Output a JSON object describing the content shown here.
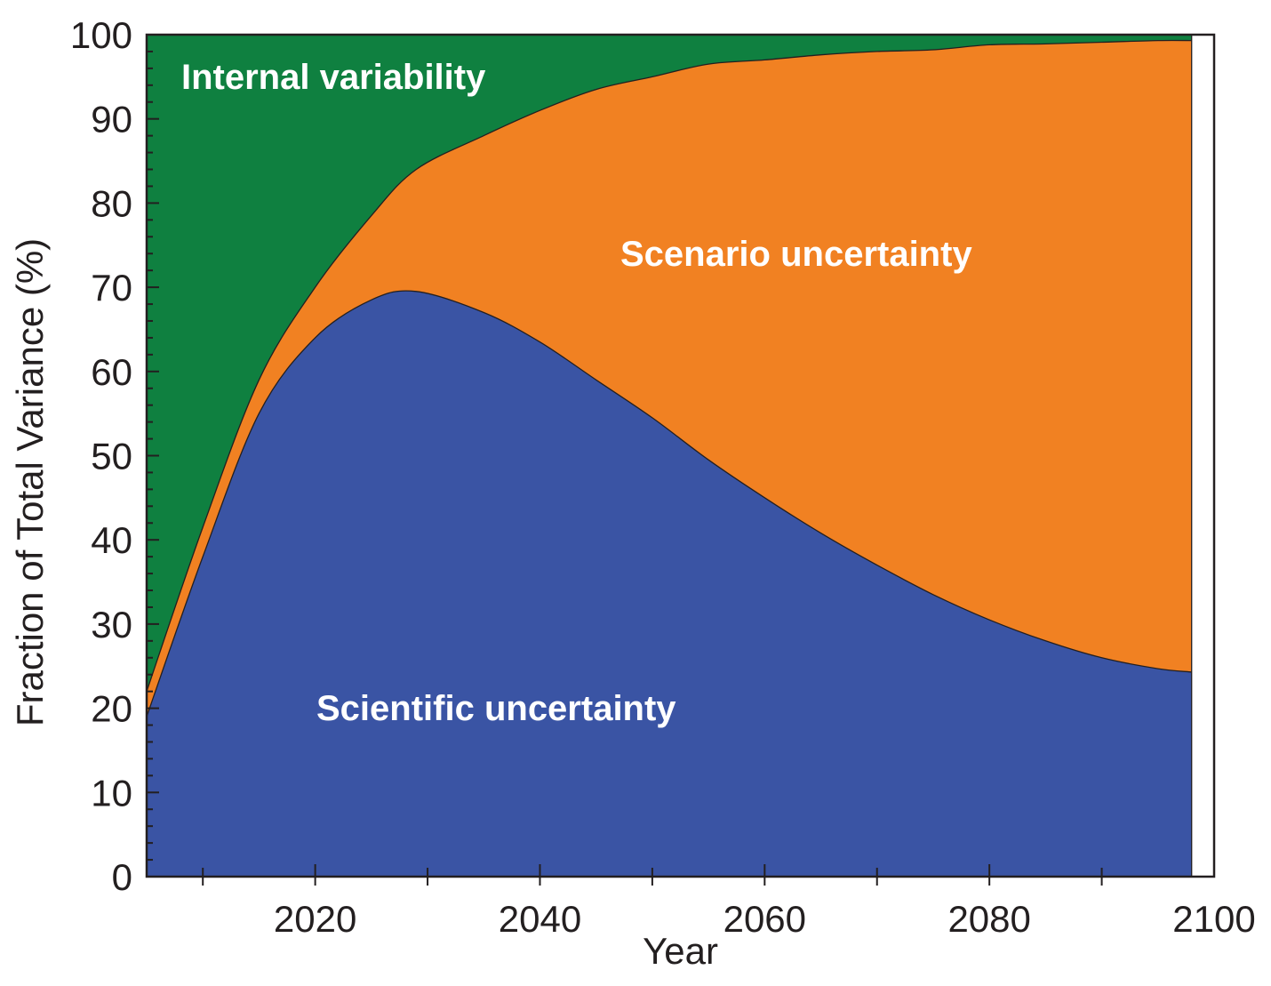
{
  "chart_data": {
    "type": "area",
    "xlabel": "Year",
    "ylabel": "Fraction of Total Variance  (%)",
    "xlim": [
      2005,
      2100
    ],
    "ylim": [
      0,
      100
    ],
    "x_tick_labels": [
      "2020",
      "2040",
      "2060",
      "2080",
      "2100"
    ],
    "y_tick_labels": [
      "0",
      "10",
      "20",
      "30",
      "40",
      "50",
      "60",
      "70",
      "80",
      "90",
      "100"
    ],
    "stacked": true,
    "grid": false,
    "x": [
      2005,
      2010,
      2015,
      2020,
      2025,
      2029,
      2035,
      2040,
      2045,
      2050,
      2055,
      2060,
      2065,
      2070,
      2075,
      2080,
      2085,
      2090,
      2095,
      2098
    ],
    "series": [
      {
        "name": "Scientific uncertainty",
        "color": "#3a54a4",
        "values": [
          19,
          38,
          55,
          64,
          68.5,
          69.5,
          67,
          63.5,
          59,
          54.5,
          49.5,
          45,
          40.8,
          37,
          33.5,
          30.5,
          28,
          26,
          24.7,
          24.3
        ]
      },
      {
        "name": "Scenario uncertainty",
        "color": "#f18122",
        "values": [
          3,
          3.5,
          4,
          6,
          10,
          14.5,
          21,
          27.5,
          34.5,
          40.5,
          47,
          52,
          56.8,
          61,
          64.7,
          68.3,
          70.9,
          73.1,
          74.6,
          75
        ]
      },
      {
        "name": "Internal variability",
        "color": "#0f8040",
        "values": [
          78,
          58.5,
          41,
          30,
          21.5,
          16,
          12,
          9,
          6.5,
          5,
          3.5,
          3,
          2.4,
          2,
          1.8,
          1.2,
          1.1,
          0.9,
          0.7,
          0.7
        ]
      }
    ]
  }
}
